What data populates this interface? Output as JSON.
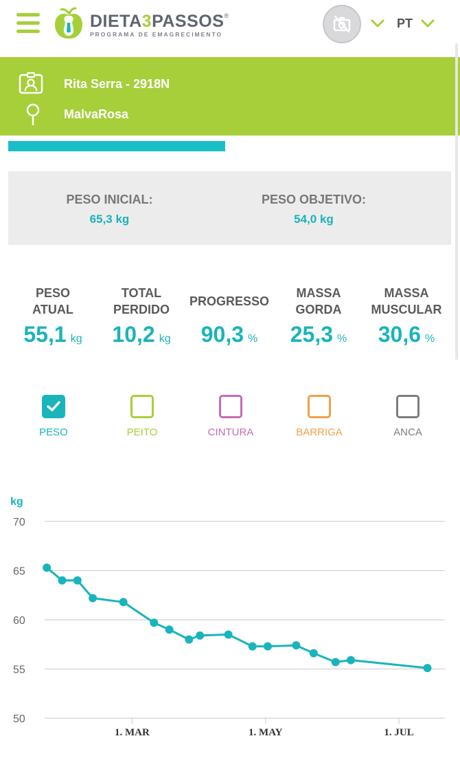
{
  "header": {
    "logo_main": "DIETA",
    "logo_three": "3",
    "logo_end": "PASSOS",
    "logo_reg": "®",
    "logo_sub": "PROGRAMA DE EMAGRECIMENTO",
    "language": "PT",
    "menu_icon": "hamburger-icon",
    "avatar_icon": "no-camera-icon",
    "accent_color": "#a6cf3a"
  },
  "user": {
    "name_id": "Rita Serra - 2918N",
    "location": "MalvaRosa",
    "id_icon": "id-badge-icon",
    "location_icon": "map-pin-icon"
  },
  "progress": {
    "fraction": 0.47
  },
  "weights": {
    "initial_label": "PESO INICIAL:",
    "initial_value": "65,3  kg",
    "target_label": "PESO OBJETIVO:",
    "target_value": "54,0  kg"
  },
  "stats": [
    {
      "label": "PESO\nATUAL",
      "value": "55,1",
      "unit": "kg"
    },
    {
      "label": "TOTAL\nPERDIDO",
      "value": "10,2",
      "unit": "kg"
    },
    {
      "label": "PROGRESSO",
      "value": "90,3",
      "unit": "%"
    },
    {
      "label": "MASSA\nGORDA",
      "value": "25,3",
      "unit": "%"
    },
    {
      "label": "MASSA\nMUSCULAR",
      "value": "30,6",
      "unit": "%"
    }
  ],
  "series_toggles": [
    {
      "label": "PESO",
      "color": "#19b4bc",
      "checked": true
    },
    {
      "label": "PEITO",
      "color": "#a6cf3a",
      "checked": false
    },
    {
      "label": "CINTURA",
      "color": "#c46bb5",
      "checked": false
    },
    {
      "label": "BARRIGA",
      "color": "#f0a04b",
      "checked": false
    },
    {
      "label": "ANCA",
      "color": "#7d7d7d",
      "checked": false
    }
  ],
  "chart_data": {
    "type": "line",
    "ylabel": "kg",
    "ylim": [
      50,
      70
    ],
    "yticks": [
      70,
      65,
      60,
      55,
      50
    ],
    "xlim": [
      "2019-01-20",
      "2019-07-22"
    ],
    "xticks": [
      {
        "date": "2019-03-01",
        "label": "1. MAR"
      },
      {
        "date": "2019-05-01",
        "label": "1. MAY"
      },
      {
        "date": "2019-07-01",
        "label": "1. JUL"
      }
    ],
    "grid": true,
    "series": [
      {
        "color": "#19b4bc",
        "points": [
          {
            "x": "2019-01-21",
            "y": 65.3
          },
          {
            "x": "2019-01-28",
            "y": 64.0
          },
          {
            "x": "2019-02-04",
            "y": 64.0
          },
          {
            "x": "2019-02-11",
            "y": 62.2
          },
          {
            "x": "2019-02-25",
            "y": 61.8
          },
          {
            "x": "2019-03-11",
            "y": 59.7
          },
          {
            "x": "2019-03-18",
            "y": 59.0
          },
          {
            "x": "2019-03-27",
            "y": 58.0
          },
          {
            "x": "2019-04-01",
            "y": 58.4
          },
          {
            "x": "2019-04-14",
            "y": 58.5
          },
          {
            "x": "2019-04-25",
            "y": 57.3
          },
          {
            "x": "2019-05-02",
            "y": 57.3
          },
          {
            "x": "2019-05-15",
            "y": 57.4
          },
          {
            "x": "2019-05-23",
            "y": 56.6
          },
          {
            "x": "2019-06-02",
            "y": 55.7
          },
          {
            "x": "2019-06-09",
            "y": 55.9
          },
          {
            "x": "2019-07-14",
            "y": 55.1
          }
        ]
      }
    ]
  }
}
